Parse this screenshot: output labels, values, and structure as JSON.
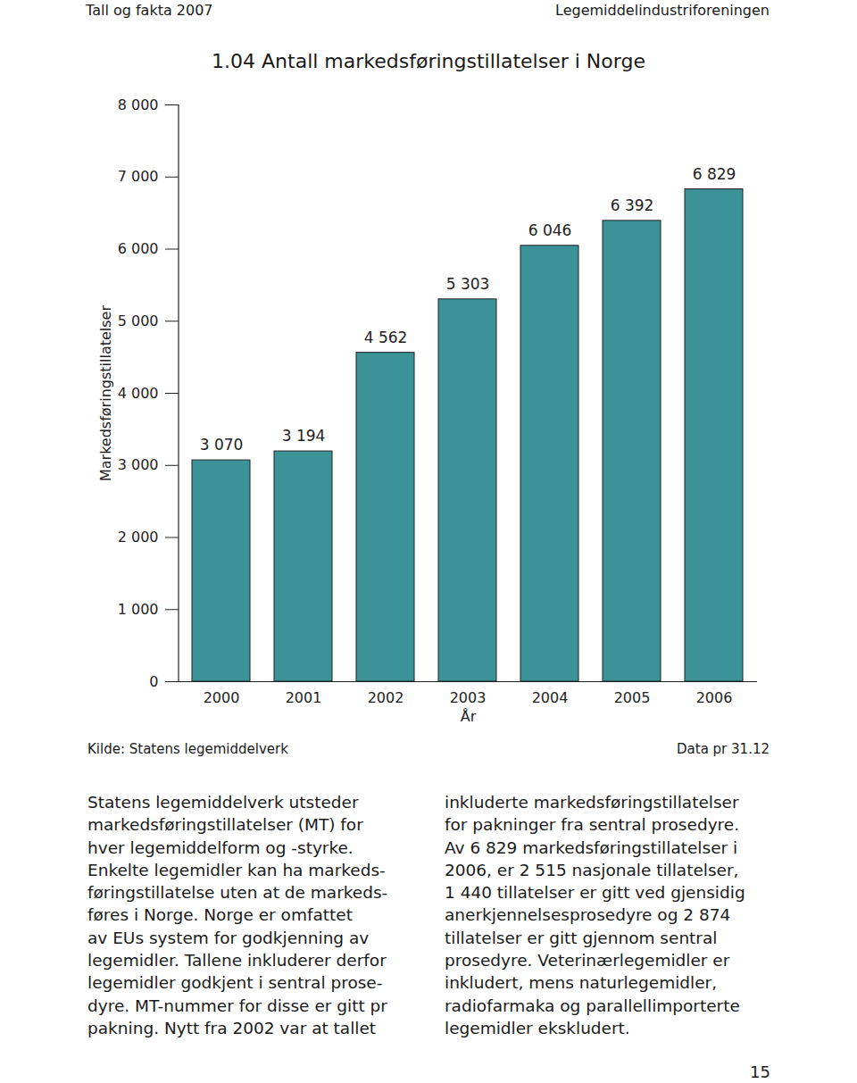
{
  "page": {
    "header_left": "Tall og fakta 2007",
    "header_right": "Legemiddelindustriforeningen",
    "source": "Kilde: Statens legemiddelverk",
    "data_date": "Data pr 31.12",
    "body_columns": [
      [
        "Statens legemiddelverk utsteder",
        "markedsføringstillatelser (MT) for",
        "hver legemiddelform og -styrke.",
        "Enkelte legemidler kan ha markeds-",
        "føringstillatelse uten at de markeds-",
        "føres i Norge. Norge er omfattet",
        "av EUs system for godkjenning av",
        "legemidler. Tallene inkluderer derfor",
        "legemidler godkjent i sentral prose-",
        "dyre. MT-nummer for disse er gitt pr",
        "pakning. Nytt fra 2002 var at tallet"
      ],
      [
        "inkluderte markedsføringstillatelser",
        "for pakninger fra sentral prosedyre.",
        "Av 6 829 markedsføringstillatelser i",
        "2006, er 2 515 nasjonale tillatelser,",
        "1 440 tillatelser er gitt ved gjensidig",
        "anerkjennelsesprosedyre og 2 874",
        "tillatelser er gitt gjennom sentral",
        "prosedyre. Veterinærlegemidler er",
        "inkludert, mens naturlegemidler,",
        "radiofarmaka og parallellimporterte",
        "legemidler ekskludert."
      ]
    ],
    "page_number": "15"
  },
  "chart_data": {
    "type": "bar",
    "title": "1.04 Antall markedsføringstillatelser i Norge",
    "x_label": "År",
    "y_label": "Markedsføringstillatelser",
    "categories": [
      "2000",
      "2001",
      "2002",
      "2003",
      "2004",
      "2005",
      "2006"
    ],
    "values": [
      3070,
      3194,
      4562,
      5303,
      6046,
      6392,
      6829
    ],
    "value_labels": [
      "3 070",
      "3 194",
      "4 562",
      "5 303",
      "6 046",
      "6 392",
      "6 829"
    ],
    "color": "#3b9397",
    "ylim": [
      0,
      8000
    ],
    "yticks": [
      0,
      {
        "value": 1000,
        "label": "1 000"
      },
      {
        "value": 2000,
        "label": "2 000"
      },
      {
        "value": 3000,
        "label": "3 000"
      },
      {
        "value": 4000,
        "label": "4 000"
      },
      {
        "value": 5000,
        "label": "5 000"
      },
      {
        "value": 6000,
        "label": "6 000"
      },
      {
        "value": 7000,
        "label": "7 000"
      },
      {
        "value": 8000,
        "label": "8 000"
      }
    ],
    "grid": false,
    "data_labels": true
  }
}
